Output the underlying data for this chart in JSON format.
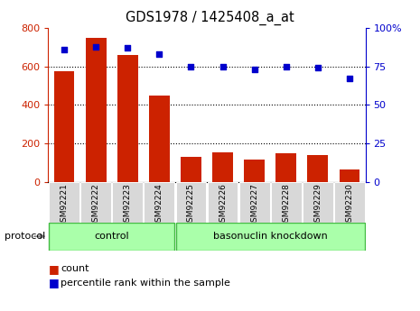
{
  "title": "GDS1978 / 1425408_a_at",
  "categories": [
    "GSM92221",
    "GSM92222",
    "GSM92223",
    "GSM92224",
    "GSM92225",
    "GSM92226",
    "GSM92227",
    "GSM92228",
    "GSM92229",
    "GSM92230"
  ],
  "bar_values": [
    575,
    750,
    660,
    450,
    130,
    155,
    115,
    150,
    140,
    65
  ],
  "percentile_values": [
    86,
    88,
    87,
    83,
    75,
    75,
    73,
    75,
    74,
    67
  ],
  "bar_color": "#cc2200",
  "dot_color": "#0000cc",
  "ylim_left": [
    0,
    800
  ],
  "ylim_right": [
    0,
    100
  ],
  "yticks_left": [
    0,
    200,
    400,
    600,
    800
  ],
  "yticks_right": [
    0,
    25,
    50,
    75,
    100
  ],
  "n_control": 4,
  "n_knockdown": 6,
  "control_label": "control",
  "knockdown_label": "basonuclin knockdown",
  "protocol_label": "protocol",
  "legend_count": "count",
  "legend_percentile": "percentile rank within the sample",
  "group_bg_color": "#aaffaa",
  "group_border_color": "#44bb44",
  "tick_label_bg": "#d8d8d8",
  "bar_width": 0.65,
  "grid_lines": [
    200,
    400,
    600
  ],
  "right_tick_labels": [
    "0",
    "25",
    "50",
    "75",
    "100%"
  ]
}
